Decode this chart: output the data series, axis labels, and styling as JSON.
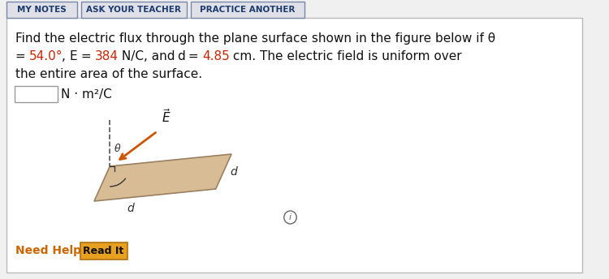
{
  "bg_color": "#f0f0f0",
  "panel_bg": "#ffffff",
  "tab_labels": [
    "MY NOTES",
    "ASK YOUR TEACHER",
    "PRACTICE ANOTHER"
  ],
  "tab_text_color": "#1a3a6e",
  "tab_bg": "#e0e0e8",
  "tab_border_color": "#7788aa",
  "body_text_color": "#111111",
  "red_color": "#cc2200",
  "units_label": "N · m²/C",
  "need_help_color": "#cc6600",
  "read_it_btn_text": "Read It",
  "read_it_btn_bg": "#e8a020",
  "read_it_btn_border": "#b07010",
  "parallelogram_color": "#d8bc96",
  "parallelogram_edge_color": "#9a8060",
  "arrow_color": "#cc5500",
  "dashed_line_color": "#555555",
  "info_icon_color": "#666666",
  "font_size_body": 11,
  "font_size_tab": 7.5
}
